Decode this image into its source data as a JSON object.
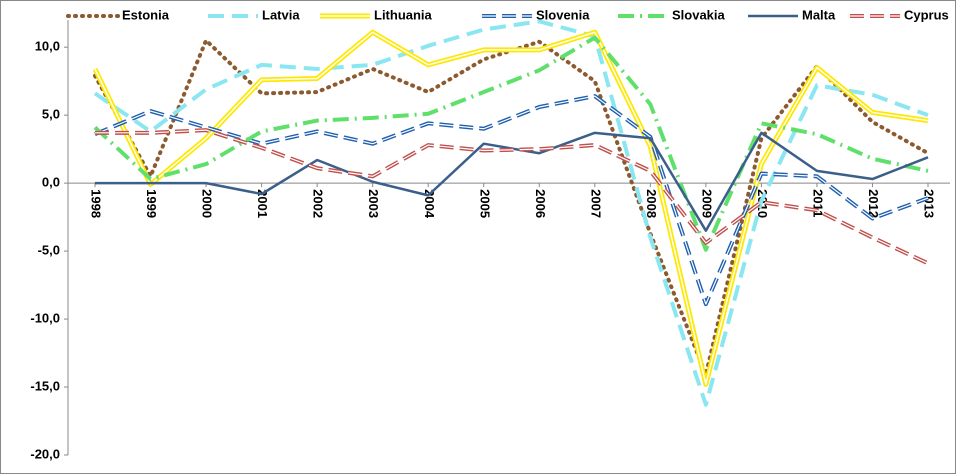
{
  "chart_data": {
    "type": "line",
    "categories": [
      "1998",
      "1999",
      "2000",
      "2001",
      "2002",
      "2003",
      "2004",
      "2005",
      "2006",
      "2007",
      "2008",
      "2009",
      "2010",
      "2011",
      "2012",
      "2013"
    ],
    "ylim": [
      -20,
      12
    ],
    "yticks": [
      {
        "value": -20,
        "label": "-20,0"
      },
      {
        "value": -15,
        "label": "-15,0"
      },
      {
        "value": -10,
        "label": "-10,0"
      },
      {
        "value": -5,
        "label": "-5,0"
      },
      {
        "value": 0,
        "label": "0,0"
      },
      {
        "value": 5,
        "label": "5,0"
      },
      {
        "value": 10,
        "label": "10,0"
      }
    ],
    "legend": "top",
    "series": [
      {
        "name": "Estonia",
        "color": "#8c5a2e",
        "line_style": "dotted",
        "values": [
          7.9,
          0.5,
          10.5,
          6.6,
          6.7,
          8.4,
          6.7,
          9.1,
          10.4,
          7.5,
          -3.7,
          -14.1,
          3.3,
          8.6,
          4.5,
          2.2
        ]
      },
      {
        "name": "Latvia",
        "color": "#8ae6f0",
        "line_style": "dashed",
        "values": [
          6.6,
          3.8,
          6.9,
          8.7,
          8.4,
          8.7,
          10.1,
          11.3,
          11.9,
          10.8,
          -4.0,
          -16.3,
          -1.3,
          7.2,
          6.5,
          5.0
        ]
      },
      {
        "name": "Lithuania",
        "color": "#ffe800",
        "line_style": "double",
        "values": [
          8.4,
          -0.1,
          3.3,
          7.6,
          7.7,
          11.1,
          8.7,
          9.8,
          9.8,
          11.1,
          2.7,
          -14.8,
          1.4,
          8.5,
          5.2,
          4.6
        ]
      },
      {
        "name": "Slovenia",
        "color": "#1f5faf",
        "line_style": "double-dashed",
        "values": [
          3.6,
          5.3,
          4.1,
          2.9,
          3.8,
          2.9,
          4.4,
          4.0,
          5.6,
          6.4,
          3.4,
          -8.9,
          0.7,
          0.5,
          -2.6,
          -1.1
        ]
      },
      {
        "name": "Slovakia",
        "color": "#5fe06b",
        "line_style": "dash-dot",
        "values": [
          4.1,
          0.3,
          1.4,
          3.8,
          4.6,
          4.8,
          5.1,
          6.7,
          8.3,
          10.7,
          5.8,
          -4.9,
          4.4,
          3.6,
          1.8,
          0.9
        ]
      },
      {
        "name": "Malta",
        "color": "#3b5f8a",
        "line_style": "solid",
        "values": [
          0,
          0,
          0,
          -0.8,
          1.7,
          0.1,
          -0.9,
          2.9,
          2.2,
          3.7,
          3.3,
          -3.5,
          3.7,
          0.9,
          0.3,
          1.9
        ]
      },
      {
        "name": "Cyprus",
        "color": "#c0504d",
        "line_style": "double-dashed",
        "values": [
          3.7,
          3.7,
          3.9,
          2.6,
          1.1,
          0.5,
          2.8,
          2.4,
          2.5,
          2.8,
          0.9,
          -4.4,
          -1.4,
          -2.0,
          -4.0,
          -5.9
        ]
      }
    ]
  }
}
